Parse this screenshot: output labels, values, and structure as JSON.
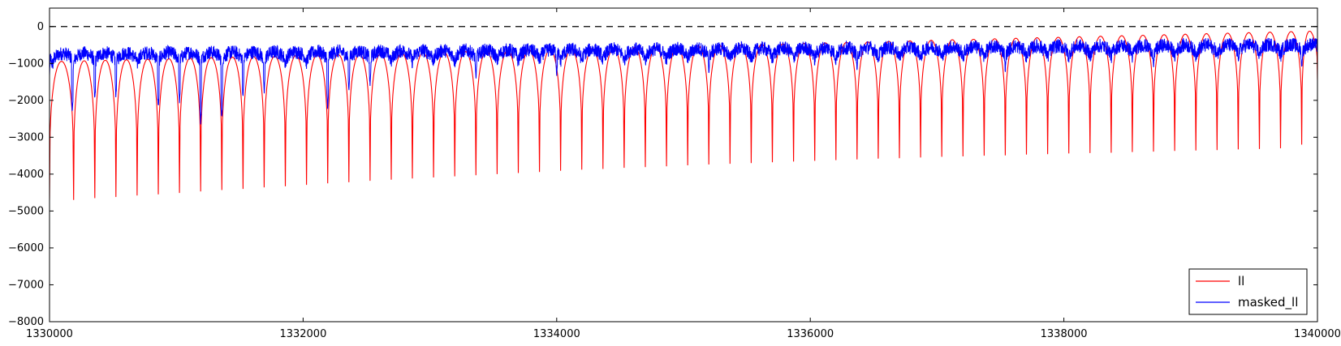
{
  "chart_data": {
    "type": "line",
    "title": "",
    "xlabel": "",
    "ylabel": "",
    "xlim": [
      1330000,
      1340000
    ],
    "ylim": [
      -8000,
      500
    ],
    "x_ticks": [
      1330000,
      1332000,
      1334000,
      1336000,
      1338000,
      1340000
    ],
    "x_tick_labels": [
      "1330000",
      "1332000",
      "1334000",
      "1336000",
      "1338000",
      "1340000"
    ],
    "y_ticks": [
      0,
      -1000,
      -2000,
      -3000,
      -4000,
      -5000,
      -6000,
      -7000,
      -8000
    ],
    "y_tick_labels": [
      "0",
      "−1000",
      "−2000",
      "−3000",
      "−4000",
      "−5000",
      "−6000",
      "−7000",
      "−8000"
    ],
    "grid": false,
    "legend_position": "lower-right",
    "reference_line": {
      "y": 0,
      "style": "dashed",
      "color": "#000000"
    },
    "series": [
      {
        "name": "ll",
        "color": "#ff0000",
        "pattern": "periodic-cusps",
        "troughs": {
          "x": [
            1330190,
            1330357,
            1330524,
            1330691,
            1330858,
            1331025,
            1331192,
            1331359,
            1331526,
            1331693,
            1331860,
            1332027,
            1332194,
            1332361,
            1332528,
            1332695,
            1332862,
            1333029,
            1333196,
            1333363,
            1333530,
            1333697,
            1333864,
            1334031,
            1334198,
            1334365,
            1334532,
            1334699,
            1334866,
            1335033,
            1335200,
            1335367,
            1335534,
            1335701,
            1335868,
            1336035,
            1336202,
            1336369,
            1336536,
            1336703,
            1336870,
            1337037,
            1337204,
            1337371,
            1337538,
            1337705,
            1337872,
            1338039,
            1338206,
            1338373,
            1338540,
            1338707,
            1338874,
            1339041,
            1339208,
            1339375,
            1339542,
            1339709,
            1339876
          ],
          "y": [
            -4700,
            -4650,
            -4620,
            -4580,
            -4550,
            -4510,
            -4470,
            -4430,
            -4400,
            -4360,
            -4330,
            -4290,
            -4250,
            -4220,
            -4180,
            -4150,
            -4120,
            -4090,
            -4060,
            -4030,
            -4000,
            -3970,
            -3940,
            -3910,
            -3880,
            -3860,
            -3830,
            -3810,
            -3790,
            -3760,
            -3740,
            -3720,
            -3700,
            -3680,
            -3660,
            -3640,
            -3620,
            -3600,
            -3580,
            -3570,
            -3550,
            -3530,
            -3520,
            -3500,
            -3490,
            -3470,
            -3460,
            -3440,
            -3430,
            -3420,
            -3400,
            -3390,
            -3370,
            -3360,
            -3350,
            -3330,
            -3320,
            -3300,
            -3200
          ]
        },
        "peak_start": -950,
        "peak_end": -120,
        "start_y": -4700,
        "end_y": -1450
      },
      {
        "name": "masked_ll",
        "color": "#0000ff",
        "pattern": "noisy-periodic",
        "baseline_start": -800,
        "baseline_end": -550,
        "dips": [
          {
            "x": 1330000,
            "y": -1300
          },
          {
            "x": 1330180,
            "y": -2300
          },
          {
            "x": 1330357,
            "y": -2000
          },
          {
            "x": 1330524,
            "y": -1900
          },
          {
            "x": 1330858,
            "y": -2200
          },
          {
            "x": 1331025,
            "y": -2050
          },
          {
            "x": 1331192,
            "y": -2600
          },
          {
            "x": 1331359,
            "y": -2500
          },
          {
            "x": 1331526,
            "y": -1900
          },
          {
            "x": 1331693,
            "y": -1800
          },
          {
            "x": 1332194,
            "y": -2200
          },
          {
            "x": 1332361,
            "y": -1700
          },
          {
            "x": 1332528,
            "y": -1600
          },
          {
            "x": 1333363,
            "y": -1400
          },
          {
            "x": 1334000,
            "y": -1300
          },
          {
            "x": 1335200,
            "y": -1250
          },
          {
            "x": 1336369,
            "y": -1200
          },
          {
            "x": 1337538,
            "y": -1200
          },
          {
            "x": 1338707,
            "y": -1150
          },
          {
            "x": 1339876,
            "y": -1150
          }
        ]
      }
    ]
  }
}
